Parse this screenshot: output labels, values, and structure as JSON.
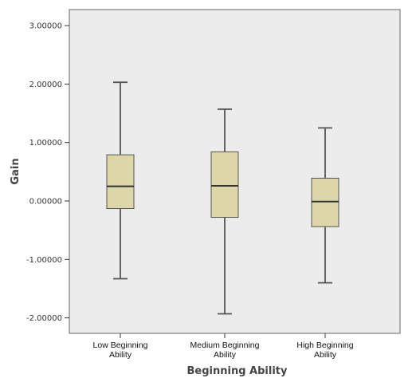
{
  "chart_data": {
    "type": "boxplot",
    "xlabel": "Beginning Ability",
    "ylabel": "Gain",
    "ylim": [
      -2.25,
      3.3
    ],
    "yticks": [
      -2,
      -1,
      0,
      1,
      2,
      3
    ],
    "ytick_labels": [
      "-2.00000",
      "-1.00000",
      "0.00000",
      "1.00000",
      "2.00000",
      "3.00000"
    ],
    "categories": [
      {
        "lines": [
          "Low Beginning",
          "Ability"
        ]
      },
      {
        "lines": [
          "Medium Beginning",
          "Ability"
        ]
      },
      {
        "lines": [
          "High Beginning",
          "Ability"
        ]
      }
    ],
    "series": [
      {
        "min": -1.33,
        "q1": -0.13,
        "median": 0.25,
        "q3": 0.79,
        "max": 2.03
      },
      {
        "min": -1.93,
        "q1": -0.28,
        "median": 0.26,
        "q3": 0.84,
        "max": 1.57
      },
      {
        "min": -1.4,
        "q1": -0.44,
        "median": -0.01,
        "q3": 0.39,
        "max": 1.25
      }
    ],
    "grid": false,
    "colors": {
      "plot_background": "#ececec",
      "box_fill": "#dcd6a8",
      "box_stroke": "#555555",
      "frame": "#666666"
    }
  }
}
